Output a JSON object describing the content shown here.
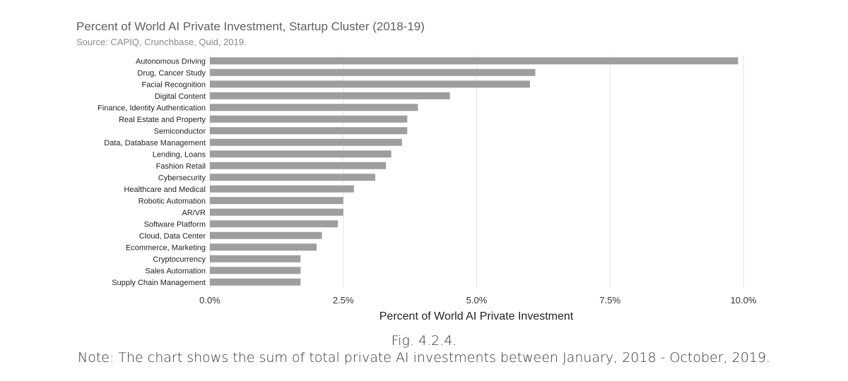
{
  "chart_data": {
    "type": "bar",
    "orientation": "horizontal",
    "title": "Percent of World AI Private Investment, Startup Cluster (2018-19)",
    "subtitle": "Source: CAPIQ, Crunchbase, Quid, 2019.",
    "xlabel": "Percent of World AI Private Investment",
    "ylabel": "",
    "xlim": [
      0,
      10
    ],
    "xticks": [
      0,
      2.5,
      5,
      7.5,
      10
    ],
    "xtick_labels": [
      "0.0%",
      "2.5%",
      "5.0%",
      "7.5%",
      "10.0%"
    ],
    "grid": true,
    "bar_color": "#9e9e9e",
    "categories": [
      "Autonomous Driving",
      "Drug, Cancer Study",
      "Facial Recognition",
      "Digital Content",
      "Finance, Identity Authentication",
      "Real Estate and Property",
      "Semiconductor",
      "Data, Database Management",
      "Lending, Loans",
      "Fashion Retail",
      "Cybersecurity",
      "Healthcare and Medical",
      "Robotic Automation",
      "AR/VR",
      "Software Platform",
      "Cloud, Data Center",
      "Ecommerce, Marketing",
      "Cryptocurrency",
      "Sales Automation",
      "Supply Chain Management"
    ],
    "values": [
      9.9,
      6.1,
      6.0,
      4.5,
      3.9,
      3.7,
      3.7,
      3.6,
      3.4,
      3.3,
      3.1,
      2.7,
      2.5,
      2.5,
      2.4,
      2.1,
      2.0,
      1.7,
      1.7,
      1.7
    ]
  },
  "caption": {
    "fig": "Fig. 4.2.4.",
    "note": "Note: The chart shows the sum of total private AI investments between January, 2018 - October, 2019."
  }
}
